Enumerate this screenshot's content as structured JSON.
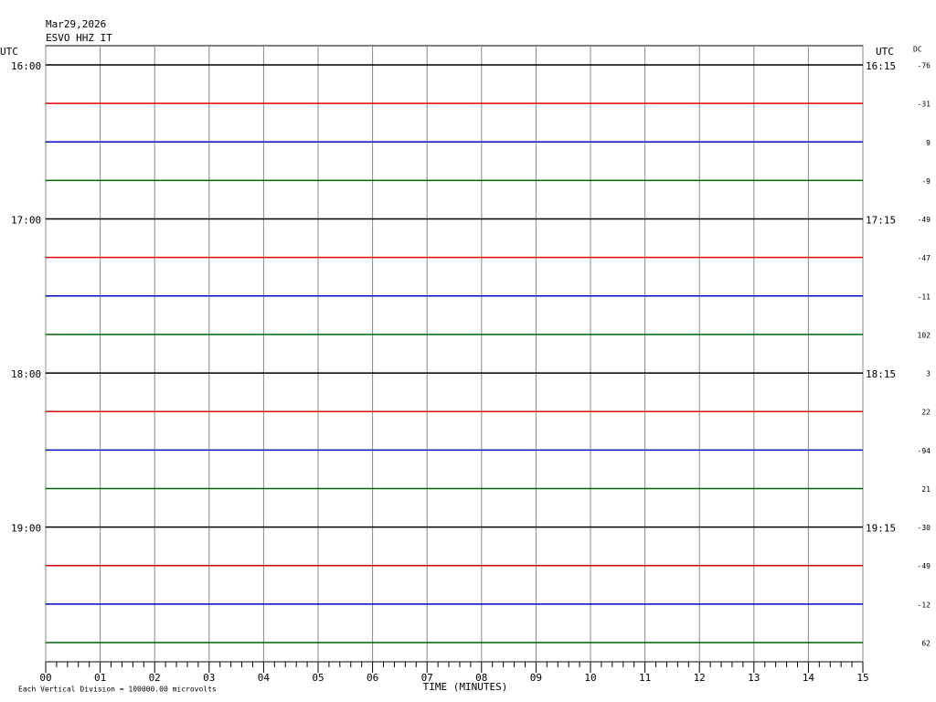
{
  "chart_data": {
    "type": "helicorder",
    "date": "Mar29,2026",
    "station": "ESVO HHZ IT",
    "left_axis_label": "UTC",
    "right_axis_label": "UTC",
    "dc_label": "DC",
    "xlabel": "TIME (MINUTES)",
    "footnote": "Each Vertical Division = 100000.00 microvolts",
    "xlim": [
      0,
      15
    ],
    "xticks": [
      {
        "value": 0,
        "label": "00"
      },
      {
        "value": 1,
        "label": "01"
      },
      {
        "value": 2,
        "label": "02"
      },
      {
        "value": 3,
        "label": "03"
      },
      {
        "value": 4,
        "label": "04"
      },
      {
        "value": 5,
        "label": "05"
      },
      {
        "value": 6,
        "label": "06"
      },
      {
        "value": 7,
        "label": "07"
      },
      {
        "value": 8,
        "label": "08"
      },
      {
        "value": 9,
        "label": "09"
      },
      {
        "value": 10,
        "label": "10"
      },
      {
        "value": 11,
        "label": "11"
      },
      {
        "value": 12,
        "label": "12"
      },
      {
        "value": 13,
        "label": "13"
      },
      {
        "value": 14,
        "label": "14"
      },
      {
        "value": 15,
        "label": "15"
      }
    ],
    "colors": [
      "#000000",
      "#dd0000",
      "#0000cc",
      "#006600"
    ],
    "rows": [
      {
        "left_label": "16:00",
        "right_label": "16:15",
        "dc": -76
      },
      {
        "left_label": null,
        "right_label": null,
        "dc": -31
      },
      {
        "left_label": null,
        "right_label": null,
        "dc": 9
      },
      {
        "left_label": null,
        "right_label": null,
        "dc": -9
      },
      {
        "left_label": "17:00",
        "right_label": "17:15",
        "dc": -49
      },
      {
        "left_label": null,
        "right_label": null,
        "dc": -47
      },
      {
        "left_label": null,
        "right_label": null,
        "dc": -11
      },
      {
        "left_label": null,
        "right_label": null,
        "dc": 102
      },
      {
        "left_label": "18:00",
        "right_label": "18:15",
        "dc": 3
      },
      {
        "left_label": null,
        "right_label": null,
        "dc": 22
      },
      {
        "left_label": null,
        "right_label": null,
        "dc": -94
      },
      {
        "left_label": null,
        "right_label": null,
        "dc": 21
      },
      {
        "left_label": "19:00",
        "right_label": "19:15",
        "dc": -30
      },
      {
        "left_label": null,
        "right_label": null,
        "dc": -49
      },
      {
        "left_label": null,
        "right_label": null,
        "dc": -12
      },
      {
        "left_label": null,
        "right_label": null,
        "dc": 62
      }
    ]
  }
}
